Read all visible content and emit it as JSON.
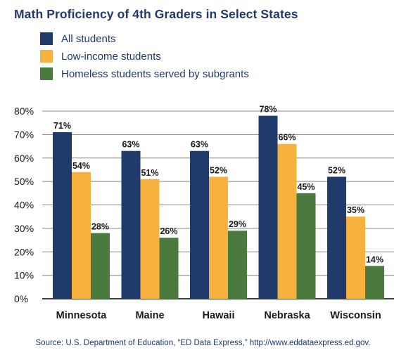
{
  "title": "Math Proficiency of 4th Graders in Select States",
  "source": "Source: U.S. Department of Education, “ED Data Express,” http://www.eddataexpress.ed.gov.",
  "chart_data": {
    "type": "bar",
    "title": "Math Proficiency of 4th Graders in Select States",
    "categories": [
      "Minnesota",
      "Maine",
      "Hawaii",
      "Nebraska",
      "Wisconsin"
    ],
    "series": [
      {
        "name": "All students",
        "color": "#1f3a6b",
        "values": [
          71,
          63,
          63,
          78,
          52
        ]
      },
      {
        "name": "Low-income students",
        "color": "#f7b13f",
        "values": [
          54,
          51,
          52,
          66,
          35
        ]
      },
      {
        "name": "Homeless students served by subgrants",
        "color": "#4b7a3f",
        "values": [
          28,
          26,
          29,
          45,
          14
        ]
      }
    ],
    "ylim": [
      0,
      80
    ],
    "yticks": [
      "0%",
      "10%",
      "20%",
      "30%",
      "40%",
      "50%",
      "60%",
      "70%",
      "80%"
    ],
    "value_suffix": "%",
    "grid": true,
    "legend_position": "top-left"
  }
}
